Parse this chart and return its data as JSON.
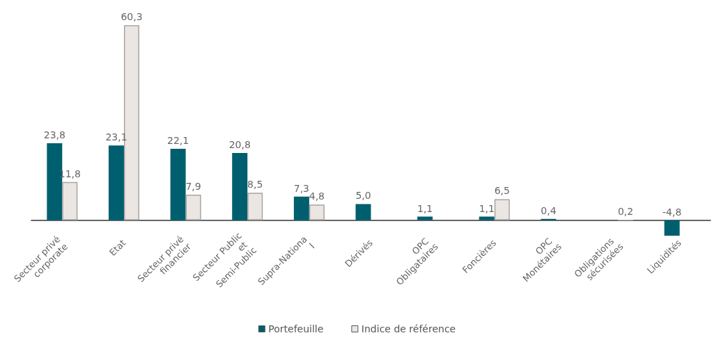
{
  "chart_data": {
    "type": "bar",
    "categories": [
      "Secteur privé corporate",
      "Etat",
      "Secteur privé financier",
      "Secteur Public et Semi-Public",
      "Supra-National",
      "Dérivés",
      "OPC Obligataires",
      "Foncières",
      "OPC Monétaires",
      "Obligations sécurisées",
      "Liquidités"
    ],
    "series": [
      {
        "name": "Portefeuille",
        "color": "#005f6e",
        "values": [
          23.8,
          23.1,
          22.1,
          20.8,
          7.3,
          5.0,
          1.1,
          1.1,
          0.4,
          null,
          -4.8
        ],
        "value_labels": [
          "23,8",
          "23,1",
          "22,1",
          "20,8",
          "7,3",
          "5,0",
          "1,1",
          "1,1",
          "0,4",
          null,
          "-4,8"
        ]
      },
      {
        "name": "Indice de référence",
        "color": "#ece6e3",
        "values": [
          11.8,
          60.3,
          7.9,
          8.5,
          4.8,
          null,
          null,
          6.5,
          null,
          0.2,
          null
        ],
        "value_labels": [
          "11,8",
          "60,3",
          "7,9",
          "8,5",
          "4,8",
          null,
          null,
          "6,5",
          null,
          "0,2",
          null
        ]
      }
    ],
    "legend": "bottom",
    "grid": false
  }
}
